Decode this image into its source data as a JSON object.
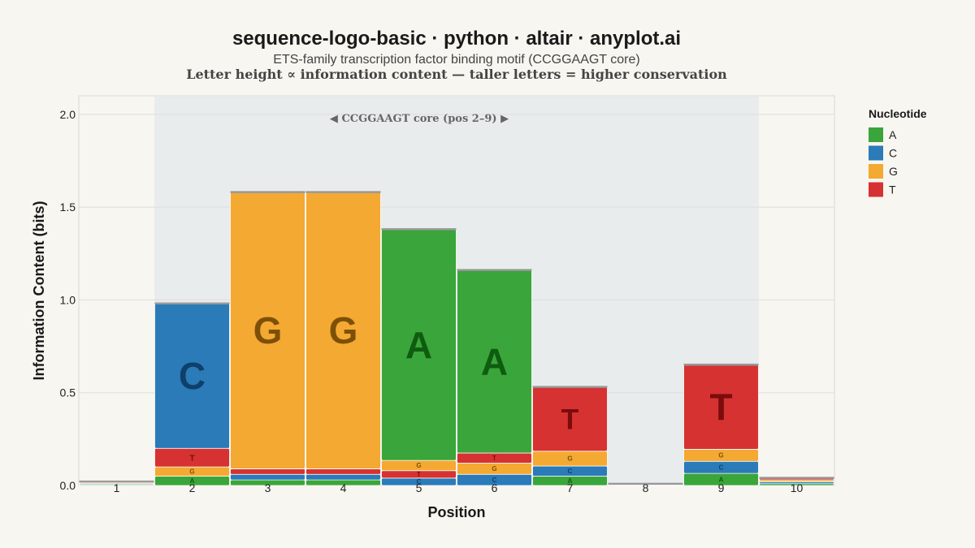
{
  "chart_data": {
    "type": "bar",
    "title": "sequence-logo-basic · python · altair · anyplot.ai",
    "subtitle": "ETS-family transcription factor binding motif (CCGGAAGT core)",
    "subtitle2": "Letter height ∝ information content — taller letters = higher conservation",
    "xlabel": "Position",
    "ylabel": "Information Content (bits)",
    "ylim": [
      0,
      2.1
    ],
    "yticks": [
      "0.0",
      "0.5",
      "1.0",
      "1.5",
      "2.0"
    ],
    "ytick_values": [
      0,
      0.5,
      1.0,
      1.5,
      2.0
    ],
    "categories": [
      "1",
      "2",
      "3",
      "4",
      "5",
      "6",
      "7",
      "8",
      "9",
      "10"
    ],
    "grid": true,
    "legend": {
      "title": "Nucleotide",
      "placement": "right",
      "items": [
        "A",
        "C",
        "G",
        "T"
      ]
    },
    "colors": {
      "A": "#3aa53a",
      "C": "#2a7bb8",
      "G": "#f4a932",
      "T": "#d63232"
    },
    "glyph_colors": {
      "A": "#0f5c10",
      "C": "#0f3f6b",
      "G": "#7d5008",
      "T": "#7a0c0c"
    },
    "annotation": {
      "text": "◀ CCGGAAGT core (pos 2–9) ▶",
      "x_start": 2,
      "x_end": 9
    },
    "stacks": [
      {
        "position": "1",
        "bars": [
          {
            "letter": "A",
            "value": 0.005
          },
          {
            "letter": "C",
            "value": 0.005
          },
          {
            "letter": "G",
            "value": 0.005
          },
          {
            "letter": "T",
            "value": 0.005
          }
        ]
      },
      {
        "position": "2",
        "bars": [
          {
            "letter": "A",
            "value": 0.05
          },
          {
            "letter": "G",
            "value": 0.05
          },
          {
            "letter": "T",
            "value": 0.1
          },
          {
            "letter": "C",
            "value": 0.78
          }
        ]
      },
      {
        "position": "3",
        "bars": [
          {
            "letter": "A",
            "value": 0.03
          },
          {
            "letter": "C",
            "value": 0.03
          },
          {
            "letter": "T",
            "value": 0.03
          },
          {
            "letter": "G",
            "value": 1.49
          }
        ]
      },
      {
        "position": "4",
        "bars": [
          {
            "letter": "A",
            "value": 0.03
          },
          {
            "letter": "C",
            "value": 0.03
          },
          {
            "letter": "T",
            "value": 0.03
          },
          {
            "letter": "G",
            "value": 1.49
          }
        ]
      },
      {
        "position": "5",
        "bars": [
          {
            "letter": "C",
            "value": 0.04
          },
          {
            "letter": "T",
            "value": 0.04
          },
          {
            "letter": "G",
            "value": 0.055
          },
          {
            "letter": "A",
            "value": 1.245
          }
        ]
      },
      {
        "position": "6",
        "bars": [
          {
            "letter": "C",
            "value": 0.06
          },
          {
            "letter": "G",
            "value": 0.06
          },
          {
            "letter": "T",
            "value": 0.055
          },
          {
            "letter": "A",
            "value": 0.985
          }
        ]
      },
      {
        "position": "7",
        "bars": [
          {
            "letter": "A",
            "value": 0.05
          },
          {
            "letter": "C",
            "value": 0.055
          },
          {
            "letter": "G",
            "value": 0.08
          },
          {
            "letter": "T",
            "value": 0.345
          }
        ]
      },
      {
        "position": "8",
        "bars": [
          {
            "letter": "A",
            "value": 0.002
          },
          {
            "letter": "C",
            "value": 0.002
          },
          {
            "letter": "G",
            "value": 0.002
          },
          {
            "letter": "T",
            "value": 0.002
          }
        ]
      },
      {
        "position": "9",
        "bars": [
          {
            "letter": "A",
            "value": 0.065
          },
          {
            "letter": "C",
            "value": 0.065
          },
          {
            "letter": "G",
            "value": 0.065
          },
          {
            "letter": "T",
            "value": 0.455
          }
        ]
      },
      {
        "position": "10",
        "bars": [
          {
            "letter": "A",
            "value": 0.01
          },
          {
            "letter": "C",
            "value": 0.01
          },
          {
            "letter": "G",
            "value": 0.01
          },
          {
            "letter": "T",
            "value": 0.01
          }
        ]
      }
    ]
  }
}
